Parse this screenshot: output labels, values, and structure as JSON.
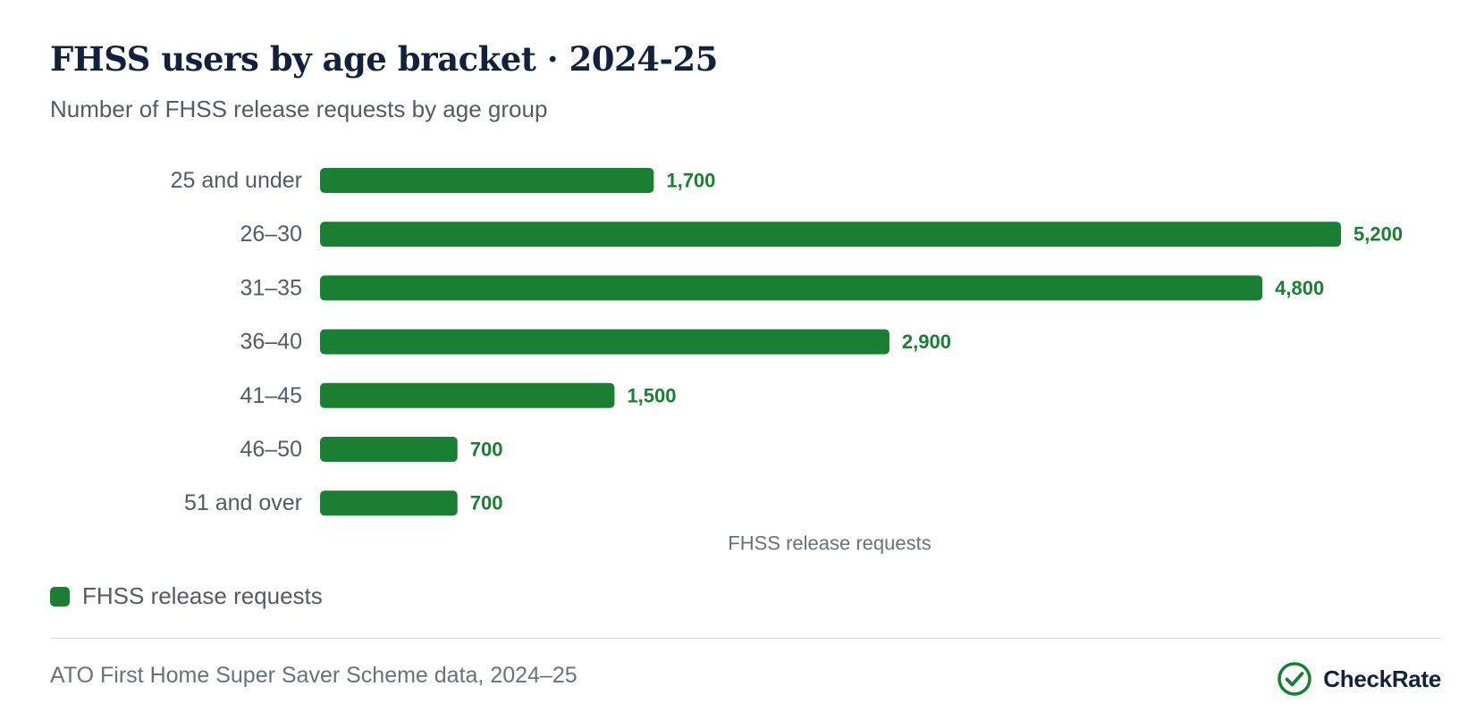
{
  "header": {
    "title": "FHSS users by age bracket · 2024-25",
    "subtitle": "Number of FHSS release requests by age group"
  },
  "chart_data": {
    "type": "bar",
    "orientation": "horizontal",
    "categories": [
      "25 and under",
      "26–30",
      "31–35",
      "36–40",
      "41–45",
      "46–50",
      "51 and over"
    ],
    "series": [
      {
        "name": "FHSS release requests",
        "values": [
          1700,
          5200,
          4800,
          2900,
          1500,
          700,
          700
        ]
      }
    ],
    "data_labels": [
      "1,700",
      "5,200",
      "4,800",
      "2,900",
      "1,500",
      "700",
      "700"
    ],
    "xlabel": "FHSS release requests",
    "ylabel": "",
    "xlim": [
      0,
      5200
    ],
    "grid": false,
    "legend": "bottom-left",
    "bar_color": "#1a7f32"
  },
  "legend": {
    "label": "FHSS release requests",
    "color": "#1a7f32"
  },
  "footer": {
    "source": "ATO First Home Super Saver Scheme data, 2024–25",
    "brand": "CheckRate",
    "brand_icon": "check-circle-icon",
    "brand_color": "#1a7f32"
  }
}
